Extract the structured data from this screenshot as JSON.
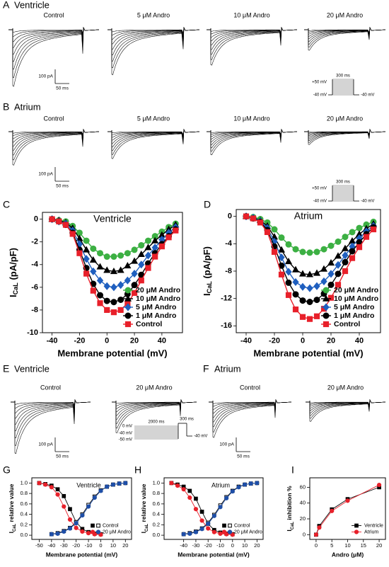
{
  "traces": [
    {
      "panel": "A",
      "title": "Ventricle",
      "labels": [
        "Control",
        "5 μM Andro",
        "10 μM Andro",
        "20 μM Andro"
      ],
      "scale_current": "100 pA",
      "scale_time": "50 ms",
      "protocol": {
        "duration": "300 ms",
        "v_test": "+50 mV",
        "v_hold": "-40 mV",
        "v_return": "-40 mV"
      }
    },
    {
      "panel": "B",
      "title": "Atrium",
      "labels": [
        "Control",
        "5 μM Andro",
        "10 μM Andro",
        "20 μM Andro"
      ],
      "scale_current": "100 pA",
      "scale_time": "50 ms",
      "protocol": {
        "duration": "300 ms",
        "v_test": "+50 mV",
        "v_hold": "-40 mV",
        "v_return": "-40 mV"
      }
    },
    {
      "panel": "E",
      "title": "Ventricle",
      "labels": [
        "Control",
        "20 μM Andro"
      ],
      "scale_current": "100 pA",
      "scale_time": "50 ms",
      "protocol": {
        "duration_pre": "2000 ms",
        "duration": "300 ms",
        "v_top": "0 mV",
        "v_hold": "-40 mV",
        "v_bottom": "-50 mV",
        "v_return": "-40 mV"
      }
    },
    {
      "panel": "F",
      "title": "Atrium",
      "labels": [
        "Control",
        "20 μM Andro"
      ],
      "scale_current": "100 pA",
      "scale_time": "50 ms"
    }
  ],
  "chart_data": [
    {
      "type": "line",
      "panel": "C",
      "title": "Ventricle",
      "xlabel": "Membrane potential (mV)",
      "ylabel": {
        "main": "I",
        "sub": "CaL",
        "rest": " (pA/pF)"
      },
      "x": [
        -40,
        -35,
        -30,
        -25,
        -20,
        -15,
        -10,
        -5,
        0,
        5,
        10,
        15,
        20,
        25,
        30,
        35,
        40,
        45,
        50
      ],
      "xlim": [
        -47,
        55
      ],
      "xticks": [
        -40,
        -20,
        0,
        20,
        40
      ],
      "ylim": [
        -10,
        0.6
      ],
      "yticks": [
        0,
        -2,
        -4,
        -6,
        -8,
        -10
      ],
      "legend": "lower right",
      "series": [
        {
          "name": "20 μM Andro",
          "color": "#3cb043",
          "marker": "circle",
          "values": [
            0,
            -0.1,
            -0.2,
            -0.6,
            -1.2,
            -1.9,
            -2.6,
            -3.0,
            -3.3,
            -3.3,
            -3.2,
            -3.0,
            -2.7,
            -2.3,
            -1.9,
            -1.5,
            -1.1,
            -0.7,
            -0.4
          ]
        },
        {
          "name": "10 μM Andro",
          "color": "#000000",
          "marker": "triangle",
          "values": [
            0,
            -0.1,
            -0.3,
            -0.8,
            -1.7,
            -2.7,
            -3.6,
            -4.2,
            -4.5,
            -4.6,
            -4.5,
            -4.1,
            -3.7,
            -3.1,
            -2.5,
            -1.9,
            -1.4,
            -0.9,
            -0.5
          ]
        },
        {
          "name": "5 μM Andro",
          "color": "#1f5fbf",
          "marker": "diamond",
          "values": [
            0,
            -0.2,
            -0.4,
            -1.0,
            -2.2,
            -3.5,
            -4.6,
            -5.4,
            -5.9,
            -6.0,
            -5.8,
            -5.4,
            -4.8,
            -4.0,
            -3.2,
            -2.5,
            -1.8,
            -1.2,
            -0.7
          ]
        },
        {
          "name": "1 μM Andro",
          "color": "#000000",
          "marker": "circle",
          "values": [
            0,
            -0.2,
            -0.5,
            -1.2,
            -2.7,
            -4.3,
            -5.7,
            -6.7,
            -7.2,
            -7.3,
            -7.1,
            -6.6,
            -5.8,
            -4.9,
            -3.9,
            -3.0,
            -2.2,
            -1.5,
            -0.9
          ]
        },
        {
          "name": "Control",
          "color": "#e8202a",
          "marker": "square",
          "values": [
            0,
            -0.2,
            -0.5,
            -1.3,
            -3.0,
            -4.8,
            -6.3,
            -7.4,
            -8.0,
            -8.2,
            -8.0,
            -7.4,
            -6.5,
            -5.4,
            -4.3,
            -3.3,
            -2.4,
            -1.6,
            -1.0
          ]
        }
      ]
    },
    {
      "type": "line",
      "panel": "D",
      "title": "Atrium",
      "xlabel": "Membrane potential (mV)",
      "ylabel": {
        "main": "I",
        "sub": "CaL",
        "rest": " (pA/pF)"
      },
      "x": [
        -40,
        -35,
        -30,
        -25,
        -20,
        -15,
        -10,
        -5,
        0,
        5,
        10,
        15,
        20,
        25,
        30,
        35,
        40,
        45,
        50
      ],
      "xlim": [
        -47,
        55
      ],
      "xticks": [
        -40,
        -20,
        0,
        20,
        40
      ],
      "ylim": [
        -17,
        1
      ],
      "yticks": [
        0,
        -4,
        -8,
        -12,
        -16
      ],
      "legend": "lower right",
      "series": [
        {
          "name": "20 μM Andro",
          "color": "#3cb043",
          "marker": "circle",
          "values": [
            0,
            -0.1,
            -0.4,
            -0.9,
            -1.9,
            -3.1,
            -4.1,
            -4.8,
            -5.2,
            -5.3,
            -5.2,
            -4.8,
            -4.3,
            -3.7,
            -3.0,
            -2.3,
            -1.7,
            -1.2,
            -0.8
          ]
        },
        {
          "name": "10 μM Andro",
          "color": "#000000",
          "marker": "triangle",
          "values": [
            0,
            -0.2,
            -0.6,
            -1.4,
            -3.0,
            -4.9,
            -6.6,
            -7.8,
            -8.4,
            -8.5,
            -8.3,
            -7.7,
            -6.8,
            -5.8,
            -4.7,
            -3.6,
            -2.6,
            -1.8,
            -1.1
          ]
        },
        {
          "name": "5 μM Andro",
          "color": "#1f5fbf",
          "marker": "diamond",
          "values": [
            0,
            -0.2,
            -0.7,
            -1.7,
            -3.7,
            -6.0,
            -8.1,
            -9.6,
            -10.3,
            -10.5,
            -10.2,
            -9.5,
            -8.4,
            -7.1,
            -5.7,
            -4.4,
            -3.2,
            -2.2,
            -1.4
          ]
        },
        {
          "name": "1 μM Andro",
          "color": "#000000",
          "marker": "circle",
          "values": [
            0,
            -0.3,
            -0.8,
            -2.0,
            -4.4,
            -7.2,
            -9.7,
            -11.4,
            -12.3,
            -12.5,
            -12.2,
            -11.3,
            -10.0,
            -8.4,
            -6.7,
            -5.1,
            -3.8,
            -2.6,
            -1.6
          ]
        },
        {
          "name": "Control",
          "color": "#e8202a",
          "marker": "square",
          "values": [
            0,
            -0.3,
            -0.9,
            -2.3,
            -5.2,
            -8.5,
            -11.5,
            -13.6,
            -14.7,
            -15.0,
            -14.6,
            -13.5,
            -11.9,
            -10.0,
            -8.0,
            -6.1,
            -4.5,
            -3.0,
            -1.9
          ]
        }
      ]
    },
    {
      "type": "line",
      "panel": "G",
      "title": "Ventricle",
      "xlabel": "Membrane potential (mV)",
      "ylabel": {
        "main": "I",
        "sub": "CaL",
        "rest": " relative value"
      },
      "x_inactivation": [
        -50,
        -45,
        -40,
        -35,
        -30,
        -25,
        -20,
        -15,
        -10,
        -5,
        0
      ],
      "x_activation": [
        -40,
        -35,
        -30,
        -25,
        -20,
        -15,
        -10,
        -5,
        0,
        5,
        10,
        15,
        20
      ],
      "xlim": [
        -56,
        25
      ],
      "xticks": [
        -50,
        -40,
        -30,
        -20,
        -10,
        0,
        10,
        20
      ],
      "ylim": [
        -0.08,
        1.1
      ],
      "yticks": [
        {
          "value": 0,
          "label": "0.0"
        },
        {
          "value": 0.2,
          "label": "0.2"
        },
        {
          "value": 0.4,
          "label": "0.4"
        },
        {
          "value": 0.6,
          "label": "0.6"
        },
        {
          "value": 0.8,
          "label": "0.8"
        },
        {
          "value": 1,
          "label": "1.0"
        }
      ],
      "legend": "lower right",
      "series": [
        {
          "name": "Control",
          "marker": "square",
          "inactivation": {
            "color": "#000000",
            "filled": true,
            "values": [
              1.0,
              0.98,
              0.95,
              0.88,
              0.75,
              0.5,
              0.25,
              0.12,
              0.06,
              0.03,
              0.02
            ]
          },
          "activation": {
            "color": "#000000",
            "filled": false,
            "values": [
              0.02,
              0.04,
              0.08,
              0.14,
              0.25,
              0.4,
              0.58,
              0.74,
              0.86,
              0.93,
              0.97,
              0.99,
              1.0
            ]
          }
        },
        {
          "name": "20 μM Andro",
          "marker": "circle",
          "inactivation": {
            "color": "#e8202a",
            "filled": true,
            "values": [
              1.0,
              0.97,
              0.92,
              0.78,
              0.55,
              0.3,
              0.14,
              0.07,
              0.04,
              0.02,
              0.01
            ]
          },
          "activation": {
            "color": "#1f4fa8",
            "filled": true,
            "values": [
              0.02,
              0.03,
              0.07,
              0.13,
              0.23,
              0.38,
              0.55,
              0.72,
              0.85,
              0.93,
              0.97,
              0.99,
              1.0
            ]
          }
        }
      ]
    },
    {
      "type": "line",
      "panel": "H",
      "title": "Atrium",
      "xlabel": "Membrane potential (mV)",
      "ylabel": {
        "main": "I",
        "sub": "CaL",
        "rest": " relative value"
      },
      "x_inactivation": [
        -50,
        -45,
        -40,
        -35,
        -30,
        -25,
        -20,
        -15,
        -10,
        -5,
        0
      ],
      "x_activation": [
        -40,
        -35,
        -30,
        -25,
        -20,
        -15,
        -10,
        -5,
        0,
        5,
        10,
        15,
        20
      ],
      "xlim": [
        -56,
        25
      ],
      "xticks": [
        -40,
        -30,
        -20,
        -10,
        0,
        10,
        20
      ],
      "ylim": [
        -0.08,
        1.1
      ],
      "yticks": [
        {
          "value": 0,
          "label": "0.0"
        },
        {
          "value": 0.2,
          "label": "0.2"
        },
        {
          "value": 0.4,
          "label": "0.4"
        },
        {
          "value": 0.6,
          "label": "0.6"
        },
        {
          "value": 0.8,
          "label": "0.8"
        },
        {
          "value": 1,
          "label": "1.0"
        }
      ],
      "legend": "lower right",
      "series": [
        {
          "name": "Control",
          "marker": "square",
          "inactivation": {
            "color": "#000000",
            "filled": true,
            "values": [
              1.0,
              0.97,
              0.93,
              0.85,
              0.7,
              0.45,
              0.22,
              0.1,
              0.05,
              0.03,
              0.02
            ]
          },
          "activation": {
            "color": "#000000",
            "filled": false,
            "values": [
              0.02,
              0.04,
              0.07,
              0.13,
              0.24,
              0.39,
              0.57,
              0.73,
              0.85,
              0.93,
              0.97,
              0.99,
              1.0
            ]
          }
        },
        {
          "name": "20 μM Andro",
          "marker": "circle",
          "inactivation": {
            "color": "#e8202a",
            "filled": true,
            "values": [
              1.0,
              0.95,
              0.88,
              0.72,
              0.5,
              0.28,
              0.13,
              0.06,
              0.03,
              0.02,
              0.01
            ]
          },
          "activation": {
            "color": "#1f4fa8",
            "filled": true,
            "values": [
              0.02,
              0.03,
              0.06,
              0.12,
              0.22,
              0.37,
              0.54,
              0.71,
              0.84,
              0.92,
              0.97,
              0.99,
              1.0
            ]
          }
        }
      ]
    },
    {
      "type": "line",
      "panel": "I",
      "xlabel": "Andro (μM)",
      "ylabel": {
        "main": "I",
        "sub": "CaL",
        "rest": " inhibition %"
      },
      "x": [
        0,
        1,
        5,
        10,
        20
      ],
      "xlim": [
        -2,
        22
      ],
      "xticks": [
        0,
        5,
        10,
        15,
        20
      ],
      "ylim": [
        -6,
        72
      ],
      "yticks": [
        0,
        20,
        40,
        60
      ],
      "legend": "lower right",
      "series": [
        {
          "name": "Ventricle",
          "color": "#000000",
          "marker": "square",
          "values": [
            0,
            11,
            32,
            45,
            60
          ]
        },
        {
          "name": "Atrium",
          "color": "#e8202a",
          "marker": "circle",
          "values": [
            0,
            9,
            30,
            43,
            63
          ]
        }
      ]
    }
  ]
}
